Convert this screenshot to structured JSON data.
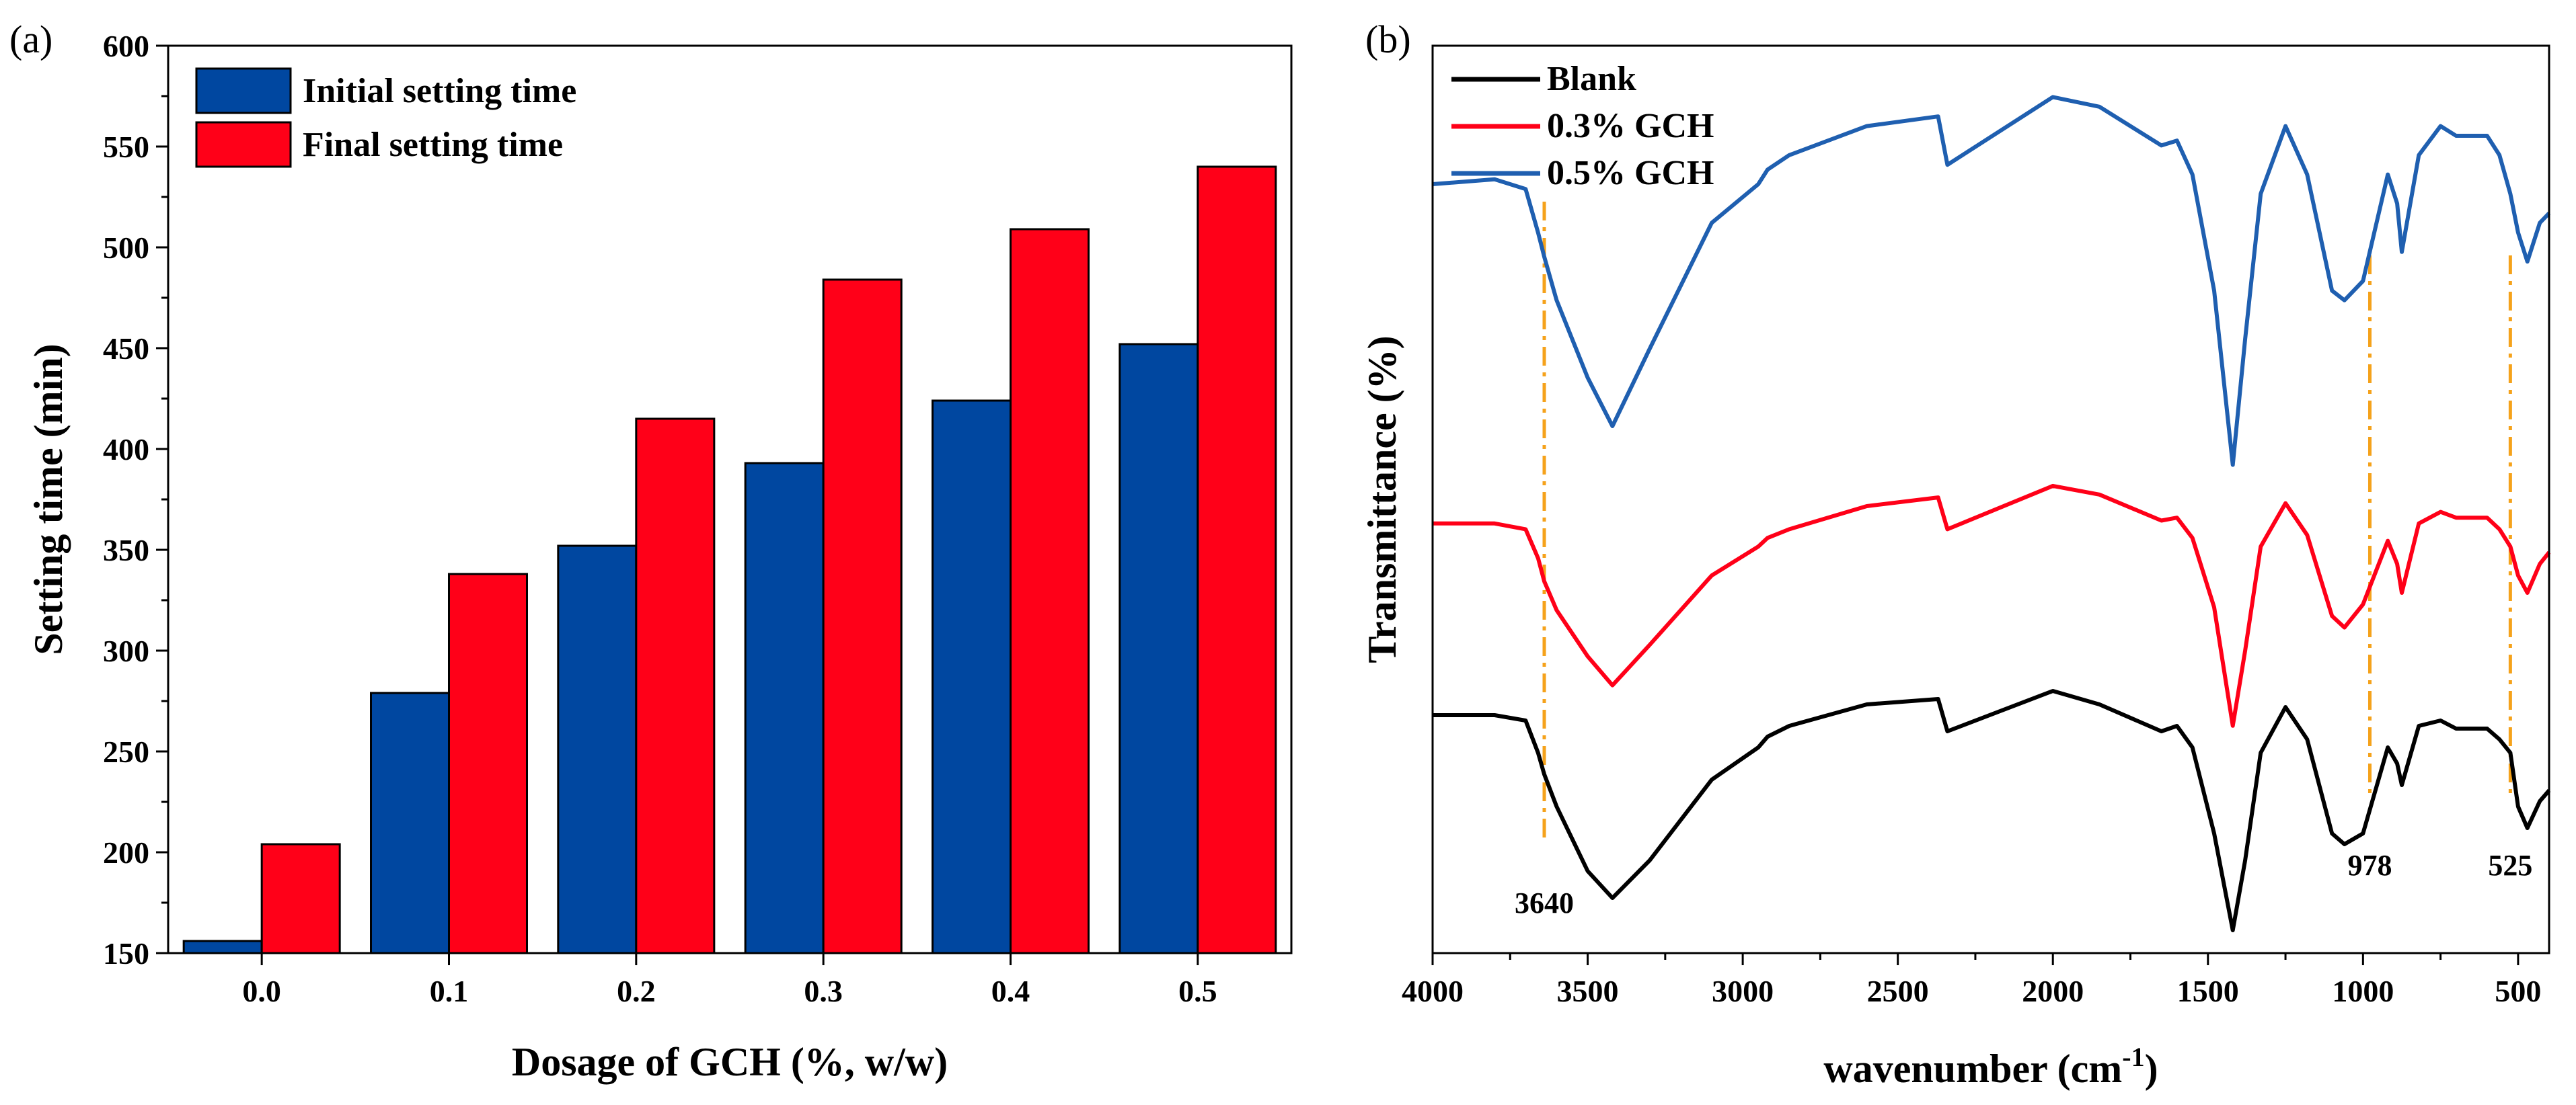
{
  "chart_data": [
    {
      "panel": "(a)",
      "type": "bar",
      "categories": [
        "0.0",
        "0.1",
        "0.2",
        "0.3",
        "0.4",
        "0.5"
      ],
      "series": [
        {
          "name": "Initial setting time",
          "color": "#0047A0",
          "values": [
            156,
            279,
            352,
            393,
            424,
            452
          ]
        },
        {
          "name": "Final setting time",
          "color": "#FF0018",
          "values": [
            204,
            338,
            415,
            484,
            509,
            540
          ]
        }
      ],
      "xlabel": "Dosage of GCH (%, w/w)",
      "ylabel": "Setting time (min)",
      "ylim": [
        150,
        600
      ],
      "yticks": [
        150,
        200,
        250,
        300,
        350,
        400,
        450,
        500,
        550,
        600
      ],
      "legend": "top-left",
      "grid": false
    },
    {
      "panel": "(b)",
      "type": "line",
      "xlabel": "wavenumber (cm",
      "xlabel_sup": "-1",
      "xlabel_end": ")",
      "ylabel": "Transmittance (%)",
      "xlim": [
        4000,
        400
      ],
      "xticks": [
        4000,
        3500,
        3000,
        2500,
        2000,
        1500,
        1000,
        500
      ],
      "legend": "top-left",
      "grid": false,
      "annotations": [
        {
          "label": "3640",
          "x": 3640
        },
        {
          "label": "978",
          "x": 978
        },
        {
          "label": "525",
          "x": 525
        }
      ],
      "series": [
        {
          "name": "Blank",
          "color": "#000000",
          "x": [
            4000,
            3800,
            3700,
            3660,
            3640,
            3600,
            3500,
            3420,
            3300,
            3100,
            2950,
            2920,
            2850,
            2600,
            2370,
            2340,
            2000,
            1850,
            1650,
            1600,
            1550,
            1480,
            1420,
            1380,
            1330,
            1250,
            1180,
            1100,
            1060,
            1000,
            920,
            890,
            875,
            820,
            750,
            700,
            600,
            560,
            525,
            500,
            470,
            430,
            400
          ],
          "y": [
            84,
            84,
            82,
            70,
            62,
            50,
            26,
            16,
            30,
            60,
            72,
            76,
            80,
            88,
            90,
            78,
            93,
            88,
            78,
            80,
            72,
            40,
            4,
            30,
            70,
            87,
            75,
            40,
            36,
            40,
            72,
            66,
            58,
            80,
            82,
            79,
            79,
            75,
            70,
            50,
            42,
            52,
            56
          ]
        },
        {
          "name": "0.3% GCH",
          "color": "#FF0018",
          "x": [
            4000,
            3800,
            3700,
            3660,
            3640,
            3600,
            3500,
            3420,
            3300,
            3100,
            2950,
            2920,
            2850,
            2600,
            2370,
            2340,
            2000,
            1850,
            1650,
            1600,
            1550,
            1480,
            1420,
            1380,
            1330,
            1250,
            1180,
            1100,
            1060,
            1000,
            920,
            890,
            875,
            820,
            750,
            700,
            600,
            560,
            525,
            500,
            470,
            430,
            400
          ],
          "y": [
            84,
            84,
            82,
            72,
            64,
            54,
            38,
            28,
            42,
            66,
            76,
            79,
            82,
            90,
            93,
            82,
            97,
            94,
            85,
            86,
            79,
            55,
            14,
            40,
            76,
            91,
            80,
            52,
            48,
            56,
            78,
            70,
            60,
            84,
            88,
            86,
            86,
            82,
            76,
            66,
            60,
            70,
            74
          ]
        },
        {
          "name": "0.5% GCH",
          "color": "#1F5FB0",
          "x": [
            4000,
            3800,
            3700,
            3660,
            3640,
            3600,
            3500,
            3420,
            3300,
            3100,
            2950,
            2920,
            2850,
            2600,
            2370,
            2340,
            2000,
            1850,
            1650,
            1600,
            1550,
            1480,
            1420,
            1380,
            1330,
            1250,
            1180,
            1100,
            1060,
            1000,
            920,
            890,
            875,
            820,
            750,
            700,
            600,
            560,
            525,
            500,
            470,
            430,
            400
          ],
          "y": [
            80,
            81,
            79,
            70,
            65,
            56,
            40,
            30,
            46,
            72,
            80,
            83,
            86,
            92,
            94,
            84,
            98,
            96,
            88,
            89,
            82,
            58,
            22,
            48,
            78,
            92,
            82,
            58,
            56,
            60,
            82,
            76,
            66,
            86,
            92,
            90,
            90,
            86,
            78,
            70,
            64,
            72,
            74
          ]
        }
      ]
    }
  ]
}
